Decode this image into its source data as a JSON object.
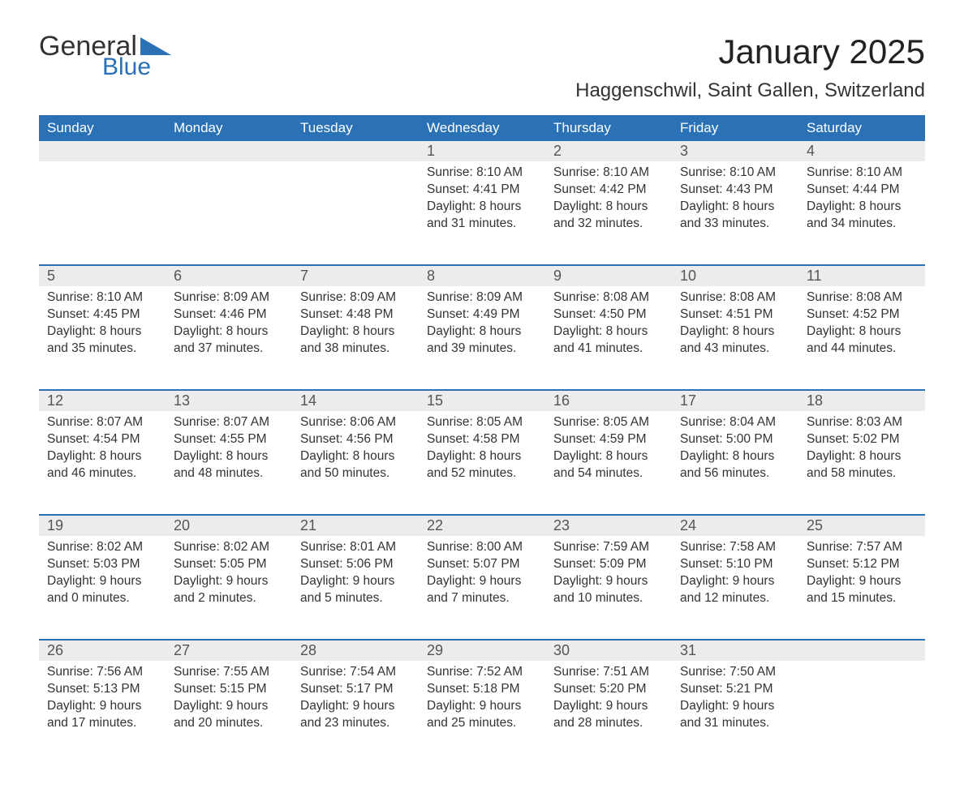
{
  "logo": {
    "text_general": "General",
    "text_blue": "Blue",
    "accent_color": "#2a72b5",
    "text_color": "#333333"
  },
  "title": "January 2025",
  "location": "Haggenschwil, Saint Gallen, Switzerland",
  "colors": {
    "header_bg": "#2a72b5",
    "header_text": "#ffffff",
    "daynum_bg": "#ececec",
    "daynum_text": "#555555",
    "body_text": "#333333",
    "page_bg": "#ffffff",
    "row_divider": "#2a72b5"
  },
  "fonts": {
    "title_pt": 42,
    "location_pt": 24,
    "weekday_pt": 17,
    "daynum_pt": 18,
    "cell_pt": 15.5
  },
  "weekdays": [
    "Sunday",
    "Monday",
    "Tuesday",
    "Wednesday",
    "Thursday",
    "Friday",
    "Saturday"
  ],
  "weeks": [
    [
      null,
      null,
      null,
      {
        "day": "1",
        "sunrise": "8:10 AM",
        "sunset": "4:41 PM",
        "daylight": "8 hours and 31 minutes."
      },
      {
        "day": "2",
        "sunrise": "8:10 AM",
        "sunset": "4:42 PM",
        "daylight": "8 hours and 32 minutes."
      },
      {
        "day": "3",
        "sunrise": "8:10 AM",
        "sunset": "4:43 PM",
        "daylight": "8 hours and 33 minutes."
      },
      {
        "day": "4",
        "sunrise": "8:10 AM",
        "sunset": "4:44 PM",
        "daylight": "8 hours and 34 minutes."
      }
    ],
    [
      {
        "day": "5",
        "sunrise": "8:10 AM",
        "sunset": "4:45 PM",
        "daylight": "8 hours and 35 minutes."
      },
      {
        "day": "6",
        "sunrise": "8:09 AM",
        "sunset": "4:46 PM",
        "daylight": "8 hours and 37 minutes."
      },
      {
        "day": "7",
        "sunrise": "8:09 AM",
        "sunset": "4:48 PM",
        "daylight": "8 hours and 38 minutes."
      },
      {
        "day": "8",
        "sunrise": "8:09 AM",
        "sunset": "4:49 PM",
        "daylight": "8 hours and 39 minutes."
      },
      {
        "day": "9",
        "sunrise": "8:08 AM",
        "sunset": "4:50 PM",
        "daylight": "8 hours and 41 minutes."
      },
      {
        "day": "10",
        "sunrise": "8:08 AM",
        "sunset": "4:51 PM",
        "daylight": "8 hours and 43 minutes."
      },
      {
        "day": "11",
        "sunrise": "8:08 AM",
        "sunset": "4:52 PM",
        "daylight": "8 hours and 44 minutes."
      }
    ],
    [
      {
        "day": "12",
        "sunrise": "8:07 AM",
        "sunset": "4:54 PM",
        "daylight": "8 hours and 46 minutes."
      },
      {
        "day": "13",
        "sunrise": "8:07 AM",
        "sunset": "4:55 PM",
        "daylight": "8 hours and 48 minutes."
      },
      {
        "day": "14",
        "sunrise": "8:06 AM",
        "sunset": "4:56 PM",
        "daylight": "8 hours and 50 minutes."
      },
      {
        "day": "15",
        "sunrise": "8:05 AM",
        "sunset": "4:58 PM",
        "daylight": "8 hours and 52 minutes."
      },
      {
        "day": "16",
        "sunrise": "8:05 AM",
        "sunset": "4:59 PM",
        "daylight": "8 hours and 54 minutes."
      },
      {
        "day": "17",
        "sunrise": "8:04 AM",
        "sunset": "5:00 PM",
        "daylight": "8 hours and 56 minutes."
      },
      {
        "day": "18",
        "sunrise": "8:03 AM",
        "sunset": "5:02 PM",
        "daylight": "8 hours and 58 minutes."
      }
    ],
    [
      {
        "day": "19",
        "sunrise": "8:02 AM",
        "sunset": "5:03 PM",
        "daylight": "9 hours and 0 minutes."
      },
      {
        "day": "20",
        "sunrise": "8:02 AM",
        "sunset": "5:05 PM",
        "daylight": "9 hours and 2 minutes."
      },
      {
        "day": "21",
        "sunrise": "8:01 AM",
        "sunset": "5:06 PM",
        "daylight": "9 hours and 5 minutes."
      },
      {
        "day": "22",
        "sunrise": "8:00 AM",
        "sunset": "5:07 PM",
        "daylight": "9 hours and 7 minutes."
      },
      {
        "day": "23",
        "sunrise": "7:59 AM",
        "sunset": "5:09 PM",
        "daylight": "9 hours and 10 minutes."
      },
      {
        "day": "24",
        "sunrise": "7:58 AM",
        "sunset": "5:10 PM",
        "daylight": "9 hours and 12 minutes."
      },
      {
        "day": "25",
        "sunrise": "7:57 AM",
        "sunset": "5:12 PM",
        "daylight": "9 hours and 15 minutes."
      }
    ],
    [
      {
        "day": "26",
        "sunrise": "7:56 AM",
        "sunset": "5:13 PM",
        "daylight": "9 hours and 17 minutes."
      },
      {
        "day": "27",
        "sunrise": "7:55 AM",
        "sunset": "5:15 PM",
        "daylight": "9 hours and 20 minutes."
      },
      {
        "day": "28",
        "sunrise": "7:54 AM",
        "sunset": "5:17 PM",
        "daylight": "9 hours and 23 minutes."
      },
      {
        "day": "29",
        "sunrise": "7:52 AM",
        "sunset": "5:18 PM",
        "daylight": "9 hours and 25 minutes."
      },
      {
        "day": "30",
        "sunrise": "7:51 AM",
        "sunset": "5:20 PM",
        "daylight": "9 hours and 28 minutes."
      },
      {
        "day": "31",
        "sunrise": "7:50 AM",
        "sunset": "5:21 PM",
        "daylight": "9 hours and 31 minutes."
      },
      null
    ]
  ],
  "labels": {
    "sunrise_prefix": "Sunrise: ",
    "sunset_prefix": "Sunset: ",
    "daylight_prefix": "Daylight: "
  }
}
